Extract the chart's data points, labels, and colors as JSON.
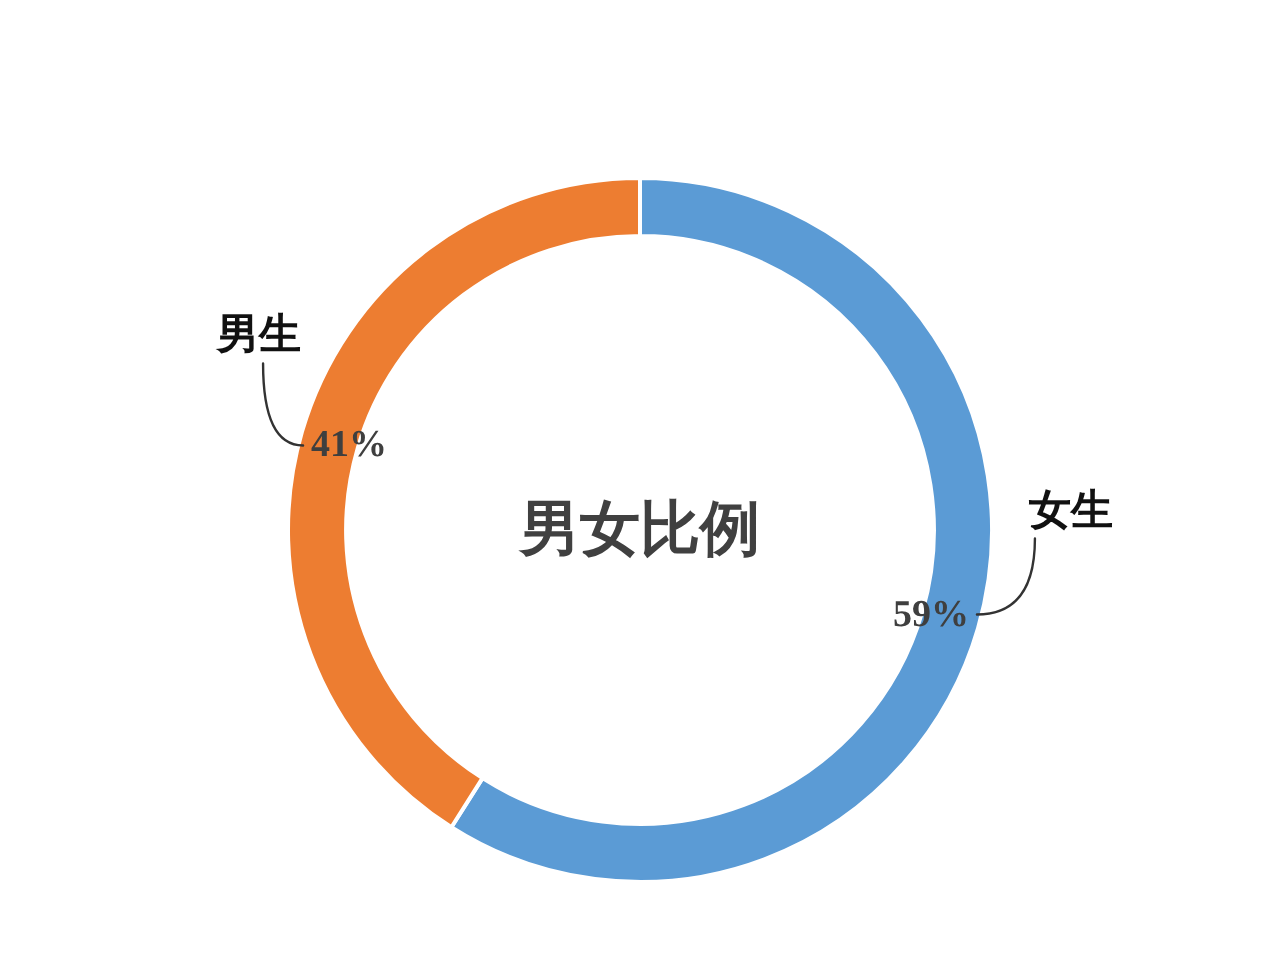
{
  "chart_data": {
    "type": "donut",
    "title": "男女比例",
    "categories": [
      "女生",
      "男生"
    ],
    "values": [
      59,
      41
    ],
    "colors": [
      "#5b9bd5",
      "#ed7d31"
    ],
    "value_labels": [
      "59%",
      "41%"
    ]
  }
}
